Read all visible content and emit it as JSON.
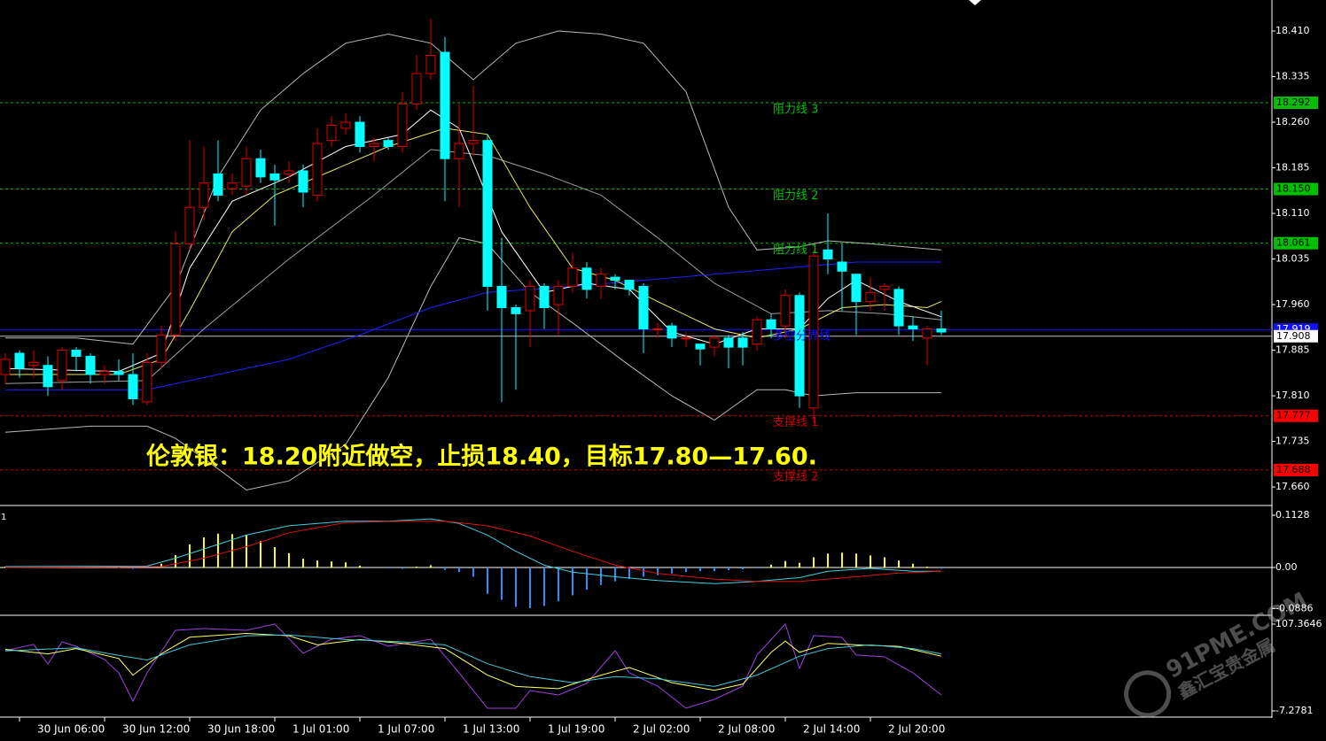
{
  "chart_data": [
    {
      "type": "candlestick",
      "xlim": [
        -0.375,
        89.3125
      ],
      "ylim": [
        17.631,
        18.461
      ],
      "yticks": [
        {
          "value": 18.41,
          "label": "18.410"
        },
        18.335,
        {
          "value": 18.26,
          "label": "18.260"
        },
        18.185,
        {
          "value": 18.11,
          "label": "18.110"
        },
        18.035,
        {
          "value": 17.96,
          "label": "17.960"
        },
        17.885,
        {
          "value": 17.81,
          "label": "17.810"
        },
        17.735,
        {
          "value": 17.66,
          "label": "17.660"
        }
      ],
      "up_color": "#e00000",
      "down_color": "#00ffff",
      "open": [
        17.845,
        17.88,
        17.86,
        17.86,
        17.835,
        17.885,
        17.875,
        17.845,
        17.85,
        17.845,
        17.8,
        17.865,
        17.91,
        18.06,
        18.12,
        18.175,
        18.15,
        18.155,
        18.2,
        18.175,
        18.175,
        18.18,
        18.14,
        18.23,
        18.25,
        18.26,
        18.22,
        18.23,
        18.22,
        18.29,
        18.34,
        18.375,
        18.2,
        18.225,
        18.23,
        17.99,
        17.955,
        17.95,
        17.99,
        17.96,
        17.99,
        18.02,
        17.99,
        18.005,
        18.0,
        17.99,
        17.92,
        17.925,
        17.905,
        17.895,
        17.89,
        17.905,
        17.905,
        17.895,
        17.935,
        17.925,
        17.975,
        17.79,
        18.05,
        18.03,
        18.01,
        17.965,
        17.985,
        17.985,
        17.925,
        17.905,
        17.92
      ],
      "high": [
        17.88,
        17.885,
        17.885,
        17.875,
        17.89,
        17.89,
        17.88,
        17.86,
        17.87,
        17.88,
        17.88,
        17.925,
        18.08,
        18.23,
        18.22,
        18.23,
        18.175,
        18.22,
        18.215,
        18.19,
        18.195,
        18.19,
        18.25,
        18.27,
        18.275,
        18.27,
        18.235,
        18.235,
        18.31,
        18.37,
        18.43,
        18.4,
        18.29,
        18.32,
        18.24,
        18.07,
        17.96,
        18.0,
        17.995,
        18.0,
        18.045,
        18.03,
        18.02,
        18.01,
        18.0,
        17.995,
        17.93,
        17.93,
        17.915,
        17.895,
        17.91,
        17.91,
        17.915,
        17.94,
        17.945,
        17.985,
        17.98,
        18.05,
        18.11,
        18.06,
        18.01,
        18.005,
        17.995,
        17.99,
        17.94,
        17.925,
        17.95
      ],
      "low": [
        17.83,
        17.84,
        17.84,
        17.81,
        17.82,
        17.85,
        17.83,
        17.83,
        17.835,
        17.795,
        17.795,
        17.855,
        17.9,
        18.05,
        18.1,
        18.13,
        18.14,
        18.14,
        18.16,
        18.09,
        18.16,
        18.12,
        18.13,
        18.22,
        18.24,
        18.21,
        18.195,
        18.215,
        18.21,
        18.28,
        18.33,
        18.13,
        18.12,
        18.205,
        17.95,
        17.8,
        17.82,
        17.89,
        17.92,
        17.91,
        17.98,
        17.97,
        17.97,
        17.985,
        17.975,
        17.88,
        17.905,
        17.89,
        17.89,
        17.86,
        17.875,
        17.855,
        17.86,
        17.885,
        17.905,
        17.905,
        17.79,
        17.765,
        18.01,
        17.95,
        17.91,
        17.95,
        17.95,
        17.91,
        17.9,
        17.86,
        17.91
      ],
      "close": [
        17.87,
        17.855,
        17.865,
        17.825,
        17.885,
        17.875,
        17.845,
        17.85,
        17.845,
        17.805,
        17.865,
        17.91,
        18.06,
        18.12,
        18.16,
        18.14,
        18.16,
        18.2,
        18.17,
        18.165,
        18.18,
        18.145,
        18.225,
        18.255,
        18.26,
        18.22,
        18.225,
        18.22,
        18.29,
        18.34,
        18.37,
        18.2,
        18.225,
        18.23,
        17.99,
        17.955,
        17.945,
        17.99,
        17.955,
        17.99,
        18.02,
        17.985,
        18.01,
        18.0,
        17.985,
        17.92,
        17.92,
        17.905,
        17.905,
        17.887,
        17.905,
        17.89,
        17.89,
        17.935,
        17.92,
        17.975,
        17.81,
        18.04,
        18.035,
        18.015,
        17.965,
        17.98,
        17.99,
        17.925,
        17.92,
        17.92,
        17.915
      ],
      "lines": [
        {
          "color": "#b8b8b8",
          "x": [
            0,
            5,
            9,
            12,
            15,
            18,
            21,
            24,
            27,
            30,
            33,
            36,
            39,
            42,
            45,
            48,
            51,
            53,
            56,
            58,
            61,
            66
          ],
          "values": [
            17.905,
            17.905,
            17.895,
            17.99,
            18.17,
            18.28,
            18.34,
            18.39,
            18.405,
            18.39,
            18.33,
            18.39,
            18.41,
            18.405,
            18.39,
            18.31,
            18.12,
            18.05,
            18.055,
            18.065,
            18.06,
            18.05
          ]
        },
        {
          "color": "#b8b8b8",
          "x": [
            0,
            6,
            10,
            12,
            15,
            17,
            20,
            24,
            27,
            30,
            32,
            34,
            37,
            40,
            44,
            47,
            50,
            53,
            55,
            57,
            60,
            66
          ],
          "values": [
            17.75,
            17.76,
            17.76,
            17.74,
            17.69,
            17.655,
            17.67,
            17.73,
            17.84,
            17.99,
            18.07,
            18.06,
            17.98,
            17.93,
            17.86,
            17.81,
            17.77,
            17.82,
            17.82,
            17.81,
            17.815,
            17.815
          ]
        },
        {
          "color": "#a0a0a0",
          "x": [
            0,
            10,
            14,
            20,
            26,
            30,
            34,
            38,
            42,
            46,
            50,
            54,
            58,
            62,
            66
          ],
          "values": [
            17.83,
            17.835,
            17.92,
            18.035,
            18.14,
            18.215,
            18.205,
            18.175,
            18.14,
            18.07,
            17.995,
            17.945,
            17.95,
            17.945,
            17.935
          ]
        },
        {
          "color": "#2020ff",
          "x": [
            0,
            10,
            15,
            20,
            25,
            30,
            34,
            40,
            45,
            50,
            55,
            60,
            66
          ],
          "values": [
            17.82,
            17.82,
            17.845,
            17.87,
            17.91,
            17.955,
            17.98,
            17.99,
            18.0,
            18.01,
            18.02,
            18.03,
            18.03
          ]
        },
        {
          "color": "#e8e860",
          "x": [
            0,
            8,
            11,
            13,
            16,
            19,
            23,
            27,
            31,
            34,
            37,
            40,
            43,
            46,
            50,
            53,
            56,
            59,
            62,
            65,
            66
          ],
          "values": [
            17.845,
            17.845,
            17.87,
            17.95,
            18.08,
            18.14,
            18.18,
            18.22,
            18.25,
            18.24,
            18.12,
            18.02,
            18.0,
            17.965,
            17.92,
            17.905,
            17.92,
            17.955,
            17.96,
            17.955,
            17.965
          ]
        },
        {
          "color": "#ffffff",
          "x": [
            0,
            8,
            11,
            13,
            16,
            20,
            24,
            28,
            30,
            32,
            35,
            38,
            41,
            44,
            47,
            50,
            53,
            56,
            58,
            60,
            63,
            66
          ],
          "values": [
            17.855,
            17.85,
            17.88,
            18.02,
            18.13,
            18.17,
            18.22,
            18.24,
            18.28,
            18.25,
            18.08,
            17.98,
            17.995,
            17.985,
            17.915,
            17.895,
            17.92,
            17.92,
            17.97,
            18.0,
            17.965,
            17.94
          ]
        }
      ],
      "levels": [
        {
          "name": "阻力线 3",
          "value": 18.292,
          "color": "#00c000",
          "box": "#00c000",
          "dash": true
        },
        {
          "name": "阻力线 2",
          "value": 18.15,
          "value_label": "18.150",
          "color": "#00c000",
          "box": "#00c000",
          "dash": true
        },
        {
          "name": "阻力线 1",
          "value": 18.061,
          "color": "#00c000",
          "box": "#00c000",
          "dash": true
        },
        {
          "name": "支撑线 1",
          "value": 17.777,
          "color": "#d00000",
          "box": "#ff0000",
          "dash": true
        },
        {
          "name": "支撑线 2",
          "value": 17.688,
          "color": "#d00000",
          "box": "#ff0000",
          "dash": true
        },
        {
          "name": "多空分界线",
          "value": 17.919,
          "color": "#1010ff",
          "box": "#1010ff",
          "dash": false
        },
        {
          "value": 17.908,
          "color": "#c0c0c0",
          "box": "#ffffff",
          "dash": false
        }
      ],
      "annotation": "伦敦银：18.20附近做空，止损18.40，目标17.80—17.60."
    },
    {
      "type": "macd",
      "label": "1",
      "xlim": [
        -0.375,
        89.3125
      ],
      "ylim": [
        -0.0994,
        0.13
      ],
      "yticks": [
        0.1128,
        {
          "value": 0,
          "label": "0.00"
        },
        -0.0886
      ],
      "up_color": "#ffff00",
      "down_color": "#1e90ff",
      "values": [
        0.002,
        0.002,
        0.001,
        0.001,
        0.002,
        0.002,
        0.001,
        0.001,
        -0.001,
        -0.003,
        -0.002,
        0.008,
        0.027,
        0.05,
        0.065,
        0.073,
        0.072,
        0.071,
        0.057,
        0.044,
        0.031,
        0.019,
        0.015,
        0.013,
        0.011,
        0.004,
        0.0,
        -0.002,
        -0.003,
        0.002,
        0.005,
        -0.005,
        -0.01,
        -0.02,
        -0.057,
        -0.07,
        -0.085,
        -0.088,
        -0.083,
        -0.073,
        -0.06,
        -0.048,
        -0.038,
        -0.03,
        -0.025,
        -0.02,
        -0.017,
        -0.013,
        -0.01,
        -0.008,
        -0.008,
        -0.006,
        -0.004,
        -0.002,
        0.006,
        0.014,
        0.01,
        0.022,
        0.03,
        0.032,
        0.03,
        0.026,
        0.022,
        0.015,
        0.008,
        0.002,
        -0.003
      ],
      "lines": [
        {
          "color": "#40d0e0",
          "x": [
            0,
            10,
            12,
            14,
            17,
            20,
            24,
            27,
            30,
            32,
            34,
            36,
            38,
            40,
            43,
            46,
            50,
            53,
            56,
            58,
            61,
            64,
            66
          ],
          "values": [
            0.002,
            0.003,
            0.02,
            0.04,
            0.07,
            0.09,
            0.1,
            0.1,
            0.105,
            0.095,
            0.07,
            0.035,
            0.005,
            -0.01,
            -0.02,
            -0.028,
            -0.035,
            -0.03,
            -0.022,
            -0.008,
            -0.002,
            -0.008,
            -0.008
          ]
        },
        {
          "color": "#e01010",
          "x": [
            0,
            11,
            14,
            17,
            20,
            24,
            28,
            31,
            34,
            37,
            40,
            43,
            46,
            50,
            53,
            56,
            60,
            63,
            66
          ],
          "values": [
            0.0,
            0.002,
            0.02,
            0.045,
            0.075,
            0.097,
            0.1,
            0.1,
            0.09,
            0.068,
            0.035,
            0.005,
            -0.013,
            -0.025,
            -0.03,
            -0.03,
            -0.02,
            -0.012,
            -0.008
          ]
        }
      ]
    },
    {
      "type": "line",
      "xlim": [
        -0.375,
        89.3125
      ],
      "ylim": [
        -15.5,
        116.7
      ],
      "yticks": [
        107.3646,
        -7.2781
      ],
      "xticks": [
        {
          "value": 1,
          "label": "30 Jun 06:00"
        },
        {
          "value": 7,
          "label": "30 Jun 12:00"
        },
        {
          "value": 13,
          "label": "30 Jun 18:00"
        },
        {
          "value": 19,
          "label": "1 Jul 01:00"
        },
        {
          "value": 25,
          "label": "1 Jul 07:00"
        },
        {
          "value": 31,
          "label": "1 Jul 13:00"
        },
        {
          "value": 37,
          "label": "1 Jul 19:00"
        },
        {
          "value": 43,
          "label": "2 Jul 02:00"
        },
        {
          "value": 49,
          "label": "2 Jul 08:00"
        },
        {
          "value": 55,
          "label": "2 Jul 14:00"
        },
        {
          "value": 61,
          "label": "2 Jul 20:00"
        }
      ],
      "lines": [
        {
          "color": "#a040e0",
          "x": [
            0,
            2,
            3,
            4,
            5,
            7,
            8,
            9,
            10,
            12,
            14,
            17,
            19,
            21,
            23,
            25,
            27,
            30,
            32,
            34,
            36,
            37,
            39,
            41,
            43,
            44,
            46,
            48,
            50,
            52,
            53,
            55,
            56,
            57,
            59,
            60,
            62,
            64,
            66
          ],
          "values": [
            72.3,
            80.5,
            54.7,
            84,
            78,
            60.6,
            43,
            5.6,
            43,
            99.2,
            101.5,
            99.2,
            107.4,
            68.8,
            87.5,
            92.2,
            78.1,
            87.5,
            43,
            -3.8,
            -3.8,
            19.6,
            13.8,
            29,
            72.3,
            43,
            25.5,
            -3.8,
            7.9,
            25.5,
            66.5,
            107.4,
            48.9,
            92.2,
            89.8,
            66.5,
            64.1,
            43,
            13.8
          ]
        },
        {
          "color": "#ffff60",
          "x": [
            0,
            3,
            5,
            8,
            9,
            11,
            13,
            17,
            20,
            22,
            25,
            28,
            31,
            34,
            36,
            39,
            42,
            44,
            47,
            50,
            52,
            54,
            55,
            56,
            58,
            60,
            63,
            66
          ],
          "values": [
            74,
            68,
            75,
            62,
            40,
            68,
            90,
            95,
            92,
            80,
            87,
            82,
            75,
            40,
            25,
            22,
            40,
            50,
            30,
            20,
            28,
            70,
            85,
            70,
            82,
            80,
            78,
            65
          ]
        },
        {
          "color": "#40c8d8",
          "x": [
            0,
            5,
            8,
            10,
            13,
            17,
            20,
            24,
            28,
            31,
            34,
            37,
            40,
            43,
            46,
            50,
            53,
            56,
            58,
            61,
            64,
            66
          ],
          "values": [
            72,
            76,
            66,
            60,
            80,
            92,
            93,
            87,
            84,
            80,
            55,
            38,
            30,
            38,
            35,
            25,
            40,
            65,
            75,
            80,
            75,
            68
          ]
        }
      ]
    }
  ],
  "watermark": {
    "site": "91PME.COM",
    "name": "鑫汇宝贵金属"
  }
}
